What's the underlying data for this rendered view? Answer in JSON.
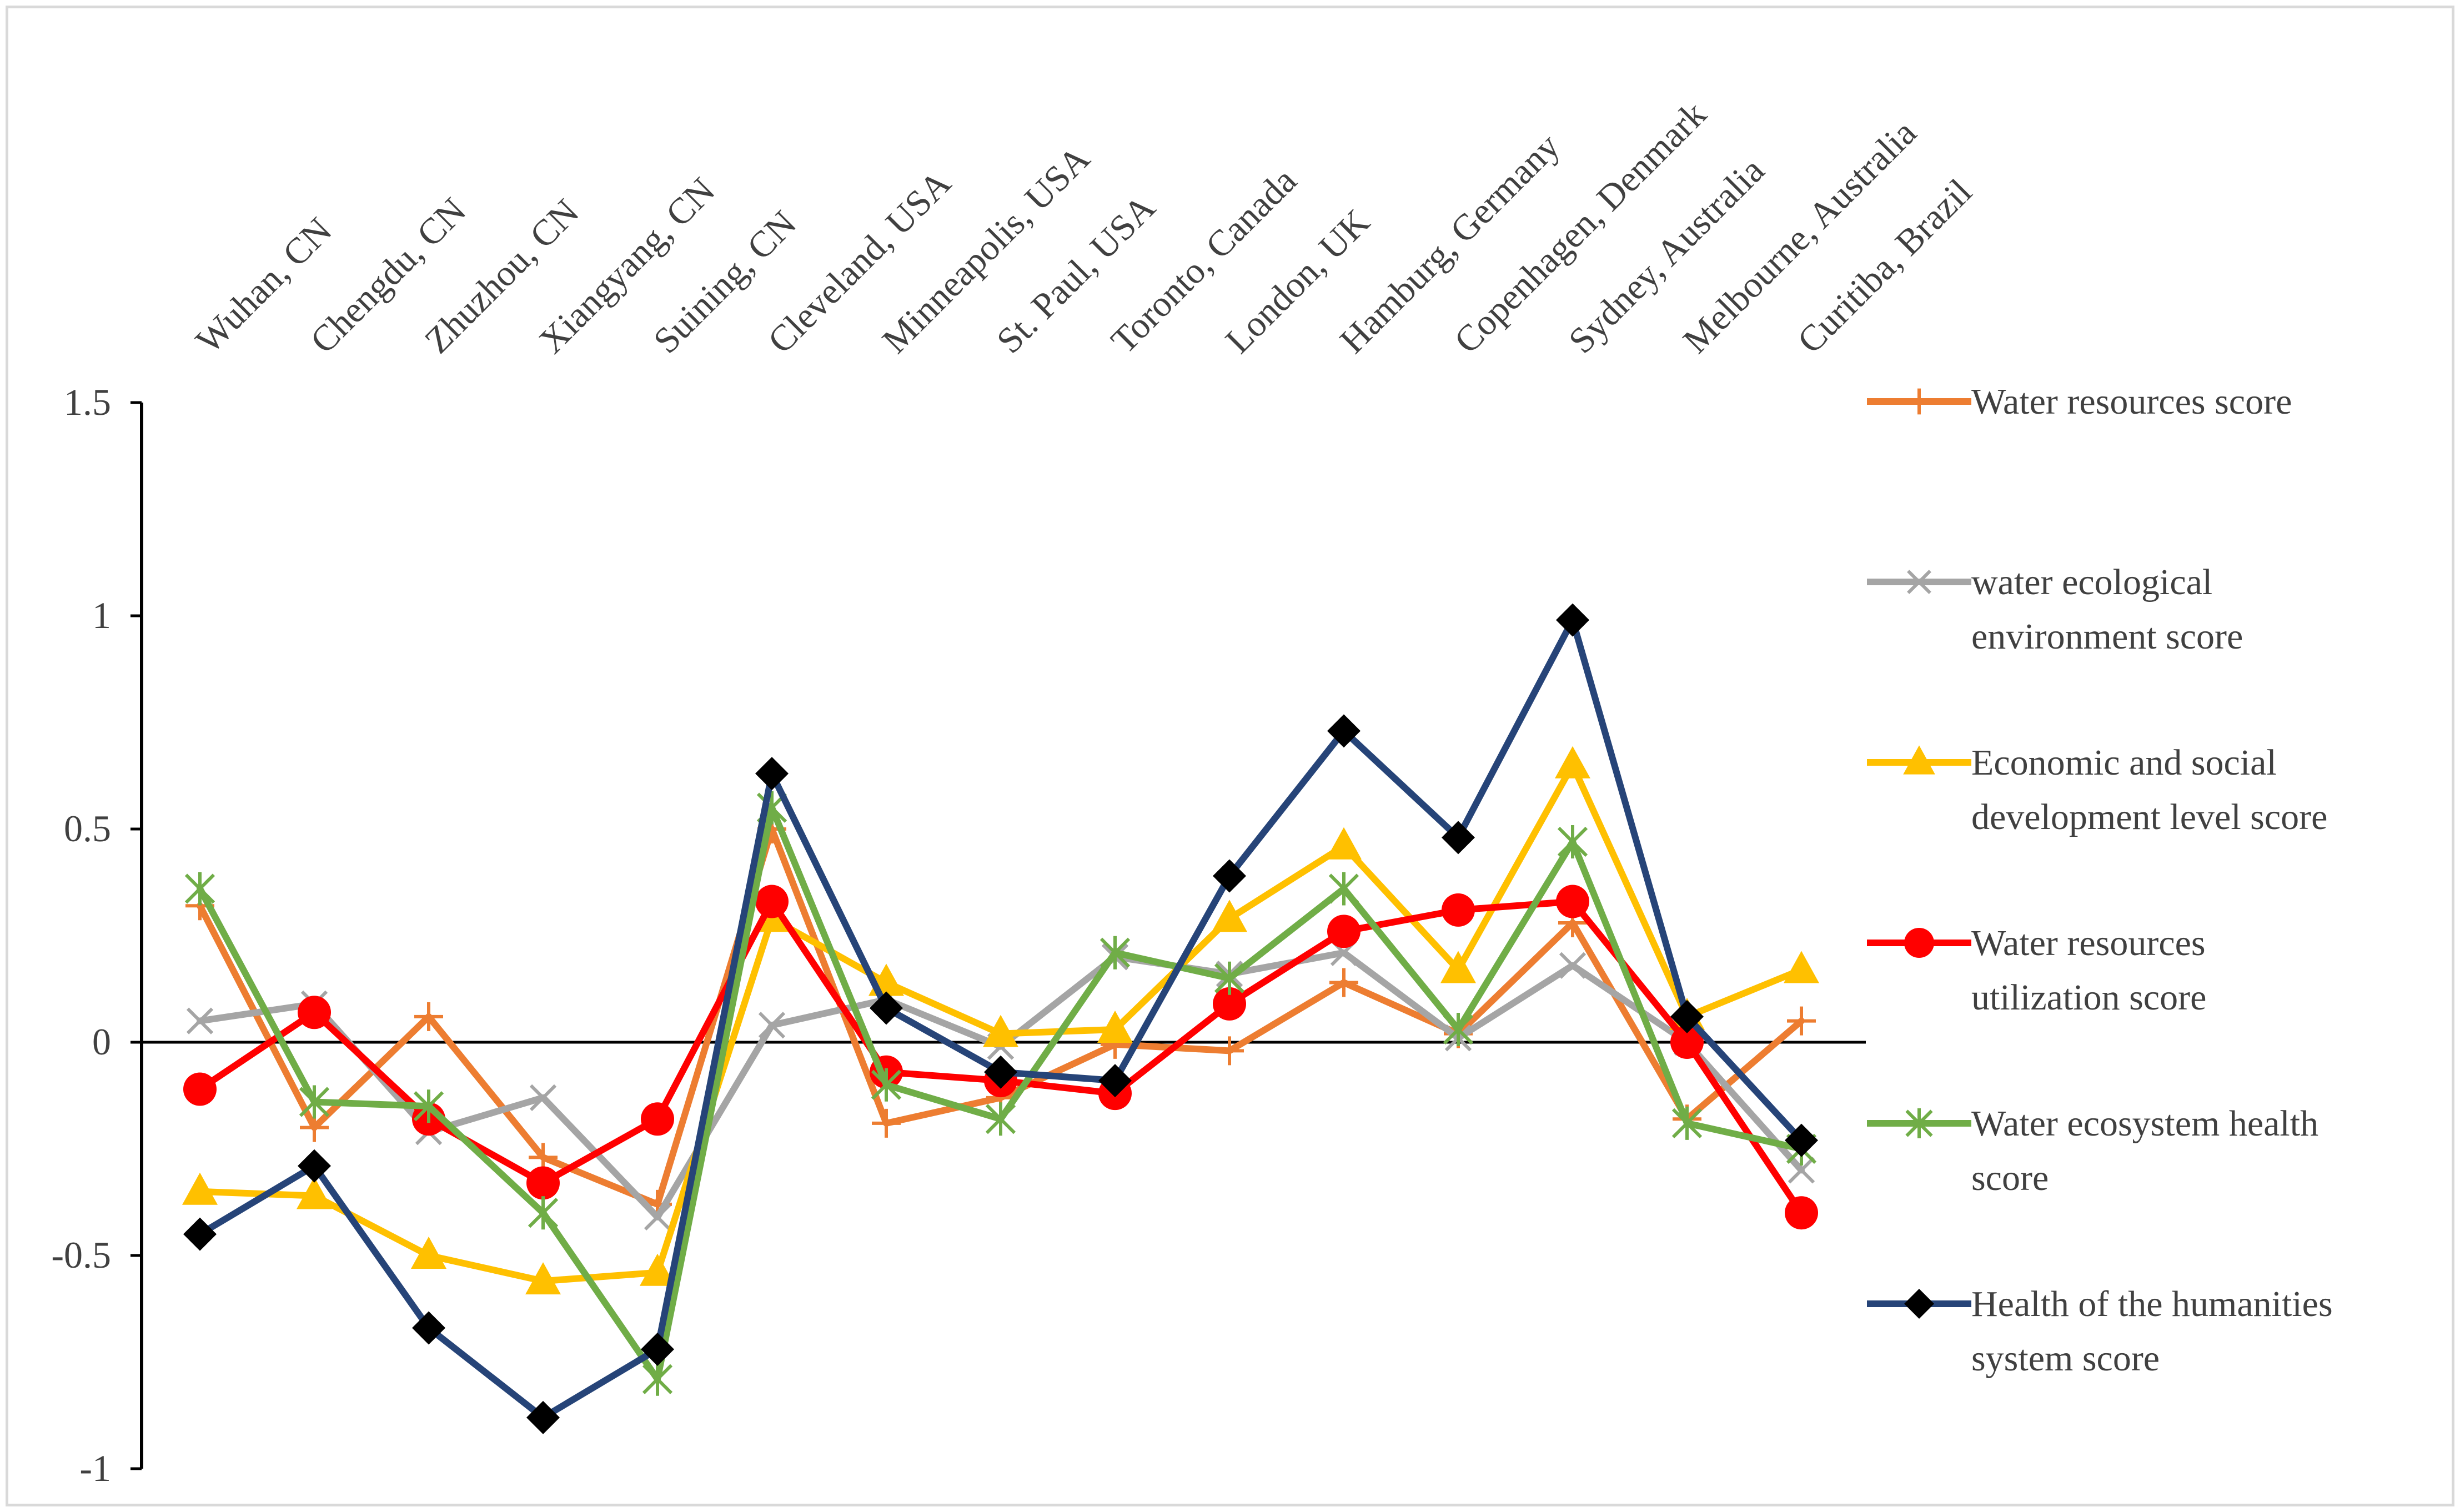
{
  "chart_data": {
    "type": "line",
    "title": "",
    "xlabel": "",
    "ylabel": "",
    "ylim": [
      -1,
      1.5
    ],
    "yticks": [
      -1,
      -0.5,
      0,
      0.5,
      1,
      1.5
    ],
    "ytick_labels": [
      "-1",
      "-0.5",
      "0",
      "0.5",
      "1",
      "1.5"
    ],
    "grid": false,
    "legend_position": "right",
    "categories": [
      "Wuhan, CN",
      "Chengdu, CN",
      "Zhuzhou, CN",
      "Xiangyang, CN",
      "Suining, CN",
      "Cleveland, USA",
      "Minneapolis, USA",
      "St. Paul, USA",
      "Toronto, Canada",
      "London, UK",
      "Hamburg, Germany",
      "Copenhagen, Denmark",
      "Sydney, Australia",
      "Melbourne, Australia",
      "Curitiba, Brazil"
    ],
    "series": [
      {
        "name": "Water resources score",
        "legend_lines": [
          "Water resources score"
        ],
        "color": "#ED7D31",
        "marker": "plus",
        "values": [
          0.32,
          -0.2,
          0.06,
          -0.27,
          -0.38,
          0.5,
          -0.19,
          -0.13,
          -0.005,
          -0.02,
          0.14,
          0.02,
          0.28,
          -0.18,
          0.05
        ]
      },
      {
        "name": "water ecological environment score",
        "legend_lines": [
          "water ecological",
          "environment score"
        ],
        "color": "#A5A5A5",
        "marker": "x",
        "values": [
          0.05,
          0.09,
          -0.21,
          -0.13,
          -0.41,
          0.04,
          0.1,
          -0.01,
          0.2,
          0.16,
          0.21,
          0.01,
          0.18,
          0.0,
          -0.3
        ]
      },
      {
        "name": "Economic and social development level score",
        "legend_lines": [
          "Economic and social",
          "development level score"
        ],
        "color": "#FFC000",
        "marker": "triangle",
        "values": [
          -0.35,
          -0.36,
          -0.5,
          -0.56,
          -0.54,
          0.29,
          0.14,
          0.02,
          0.03,
          0.29,
          0.46,
          0.17,
          0.65,
          0.06,
          0.17
        ]
      },
      {
        "name": "Water resources utilization score",
        "legend_lines": [
          "Water resources",
          "utilization score"
        ],
        "color": "#FF0000",
        "marker": "circle",
        "values": [
          -0.11,
          0.07,
          -0.18,
          -0.33,
          -0.18,
          0.33,
          -0.07,
          -0.09,
          -0.12,
          0.09,
          0.26,
          0.31,
          0.33,
          0.0,
          -0.4
        ]
      },
      {
        "name": "Water ecosystem health score",
        "legend_lines": [
          "Water ecosystem health",
          "score"
        ],
        "color": "#70AD47",
        "marker": "asterisk",
        "values": [
          0.36,
          -0.14,
          -0.15,
          -0.4,
          -0.79,
          0.55,
          -0.1,
          -0.18,
          0.21,
          0.15,
          0.36,
          0.03,
          0.47,
          -0.19,
          -0.25
        ]
      },
      {
        "name": "Health of the humanities system score",
        "legend_lines": [
          "Health of the humanities",
          "system score"
        ],
        "color": "#264478",
        "marker": "diamond",
        "marker_color": "#000000",
        "values": [
          -0.45,
          -0.29,
          -0.67,
          -0.88,
          -0.72,
          0.63,
          0.08,
          -0.07,
          -0.09,
          0.39,
          0.73,
          0.48,
          0.99,
          0.06,
          -0.23
        ]
      }
    ]
  }
}
